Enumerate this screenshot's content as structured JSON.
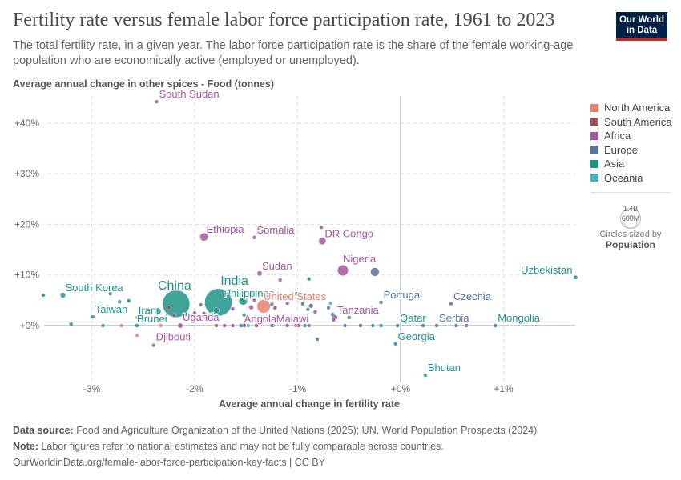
{
  "header": {
    "title": "Fertility rate versus female labor force participation rate, 1961 to 2023",
    "subtitle": "The total fertility rate, in a given year. The labor force participation rate is the share of the female working-age population who are economically active (employed or unemployed).",
    "logo_line1": "Our World",
    "logo_line2": "in Data"
  },
  "legend": {
    "regions": [
      {
        "name": "North America",
        "color": "#E9806C"
      },
      {
        "name": "South America",
        "color": "#A0505A"
      },
      {
        "name": "Africa",
        "color": "#A655A0"
      },
      {
        "name": "Europe",
        "color": "#5872A4"
      },
      {
        "name": "Asia",
        "color": "#1E9488"
      },
      {
        "name": "Oceania",
        "color": "#44B4C4"
      }
    ],
    "size_big": "1.4B",
    "size_small": "600M",
    "size_caption": "Circles sized by",
    "size_variable": "Population"
  },
  "chart_data": {
    "type": "scatter",
    "title": "Fertility rate versus female labor force participation rate, 1961 to 2023",
    "xlabel": "Average annual change in fertility rate",
    "ylabel": "Average annual change in other spices - Food (tonnes)",
    "xlim": [
      -3.5,
      1.72
    ],
    "ylim": [
      -12,
      45
    ],
    "x_ticks": [
      {
        "v": -3,
        "label": "-3%"
      },
      {
        "v": -2,
        "label": "-2%"
      },
      {
        "v": -1,
        "label": "-1%"
      },
      {
        "v": 0,
        "label": "+0%"
      },
      {
        "v": 1,
        "label": "+1%"
      }
    ],
    "y_ticks": [
      {
        "v": 0,
        "label": "+0%"
      },
      {
        "v": 10,
        "label": "+10%"
      },
      {
        "v": 20,
        "label": "+20%"
      },
      {
        "v": 30,
        "label": "+30%"
      },
      {
        "v": 40,
        "label": "+40%"
      }
    ],
    "grid": true,
    "size_variable": "Population",
    "points": [
      {
        "label": "South Sudan",
        "region": "Africa",
        "x": -2.37,
        "y": 44.2,
        "pop": 11
      },
      {
        "label": "Ethiopia",
        "region": "Africa",
        "x": -1.91,
        "y": 17.5,
        "pop": 125
      },
      {
        "label": "Somalia",
        "region": "Africa",
        "x": -1.42,
        "y": 17.4,
        "pop": 18
      },
      {
        "label": "DR Congo",
        "region": "Africa",
        "x": -0.76,
        "y": 16.7,
        "pop": 100
      },
      {
        "region": "Africa",
        "x": -0.77,
        "y": 19.4,
        "pop": 5
      },
      {
        "label": "Sudan",
        "region": "Africa",
        "x": -1.37,
        "y": 10.3,
        "pop": 48
      },
      {
        "label": "Nigeria",
        "region": "Africa",
        "x": -0.56,
        "y": 10.9,
        "pop": 220
      },
      {
        "region": "Europe",
        "x": -0.25,
        "y": 10.6,
        "pop": 140
      },
      {
        "label": "Uzbekistan",
        "region": "Asia",
        "x": 1.7,
        "y": 9.5,
        "pop": 35
      },
      {
        "label": "South Korea",
        "region": "Asia",
        "x": -3.28,
        "y": 6.0,
        "pop": 52
      },
      {
        "label": "China",
        "region": "Asia",
        "x": -2.18,
        "y": 4.3,
        "pop": 1410
      },
      {
        "label": "India",
        "region": "Asia",
        "x": -1.77,
        "y": 4.6,
        "pop": 1430
      },
      {
        "label": "Philippines",
        "region": "Asia",
        "x": -1.53,
        "y": 5.4,
        "pop": 115
      },
      {
        "label": "Iran",
        "region": "Asia",
        "x": -2.36,
        "y": 2.8,
        "pop": 88
      },
      {
        "label": "United States",
        "region": "North America",
        "x": -1.33,
        "y": 3.8,
        "pop": 335
      },
      {
        "label": "Taiwan",
        "region": "Asia",
        "x": -2.99,
        "y": 1.7,
        "pop": 23
      },
      {
        "label": "Brunei",
        "region": "Asia",
        "x": -2.56,
        "y": 0.0,
        "pop": 1
      },
      {
        "label": "Uganda",
        "region": "Africa",
        "x": -2.14,
        "y": 0.0,
        "pop": 48
      },
      {
        "label": "Angola",
        "region": "Africa",
        "x": -1.52,
        "y": 0.0,
        "pop": 36
      },
      {
        "label": "Malawi",
        "region": "Africa",
        "x": -0.99,
        "y": 0.0,
        "pop": 20
      },
      {
        "label": "Tanzania",
        "region": "Africa",
        "x": -0.64,
        "y": 1.6,
        "pop": 65
      },
      {
        "label": "Portugal",
        "region": "Europe",
        "x": -0.19,
        "y": 4.6,
        "pop": 10
      },
      {
        "label": "Czechia",
        "region": "Europe",
        "x": 0.49,
        "y": 4.3,
        "pop": 11
      },
      {
        "label": "Qatar",
        "region": "Asia",
        "x": -0.03,
        "y": 0.0,
        "pop": 3
      },
      {
        "label": "Serbia",
        "region": "Europe",
        "x": 0.35,
        "y": 0.0,
        "pop": 7
      },
      {
        "label": "Mongolia",
        "region": "Asia",
        "x": 0.92,
        "y": 0.0,
        "pop": 3
      },
      {
        "label": "Georgia",
        "region": "Asia",
        "x": -0.05,
        "y": -3.6,
        "pop": 4
      },
      {
        "label": "Bhutan",
        "region": "Asia",
        "x": 0.24,
        "y": -9.8,
        "pop": 1
      },
      {
        "label": "Djibouti",
        "region": "Africa",
        "x": -2.4,
        "y": -3.9,
        "pop": 1
      },
      {
        "region": "Asia",
        "x": -3.47,
        "y": 6.0,
        "pop": 3
      },
      {
        "region": "Asia",
        "x": -3.2,
        "y": 0.3,
        "pop": 3
      },
      {
        "region": "Asia",
        "x": -2.73,
        "y": 4.7,
        "pop": 3
      },
      {
        "region": "Asia",
        "x": -2.64,
        "y": 4.9,
        "pop": 30
      },
      {
        "region": "Asia",
        "x": -2.82,
        "y": 6.3,
        "pop": 3
      },
      {
        "region": "Asia",
        "x": -0.89,
        "y": 9.2,
        "pop": 8
      },
      {
        "region": "Asia",
        "x": -1.01,
        "y": 6.3,
        "pop": 30
      },
      {
        "region": "Asia",
        "x": -1.53,
        "y": 4.9,
        "pop": 140
      },
      {
        "region": "Asia",
        "x": -2.08,
        "y": 2.2,
        "pop": 30
      },
      {
        "region": "Asia",
        "x": -1.79,
        "y": 3.0,
        "pop": 60
      },
      {
        "region": "Asia",
        "x": -1.52,
        "y": 2.1,
        "pop": 20
      },
      {
        "region": "Asia",
        "x": -1.35,
        "y": 1.6,
        "pop": 10
      },
      {
        "region": "Asia",
        "x": -0.66,
        "y": 2.2,
        "pop": 10
      },
      {
        "region": "Asia",
        "x": -2.89,
        "y": 0.0,
        "pop": 3
      },
      {
        "region": "Asia",
        "x": -1.55,
        "y": 0.0,
        "pop": 5
      },
      {
        "region": "Asia",
        "x": -0.93,
        "y": 0.0,
        "pop": 5
      },
      {
        "region": "Asia",
        "x": -0.27,
        "y": 0.0,
        "pop": 3
      },
      {
        "region": "Asia",
        "x": -0.19,
        "y": 0.0,
        "pop": 3
      },
      {
        "region": "Africa",
        "x": -1.94,
        "y": 4.1,
        "pop": 5
      },
      {
        "region": "Africa",
        "x": -1.63,
        "y": 3.3,
        "pop": 25
      },
      {
        "region": "Africa",
        "x": -1.45,
        "y": 3.6,
        "pop": 40
      },
      {
        "region": "Africa",
        "x": -1.42,
        "y": 5.0,
        "pop": 12
      },
      {
        "region": "Africa",
        "x": -1.17,
        "y": 9.0,
        "pop": 5
      },
      {
        "region": "Africa",
        "x": -1.1,
        "y": 4.4,
        "pop": 3
      },
      {
        "region": "Africa",
        "x": -0.83,
        "y": 2.7,
        "pop": 3
      },
      {
        "region": "Africa",
        "x": -0.65,
        "y": 1.1,
        "pop": 12
      },
      {
        "region": "Africa",
        "x": -1.71,
        "y": 0.0,
        "pop": 3
      },
      {
        "region": "Africa",
        "x": -1.63,
        "y": 0.0,
        "pop": 3
      },
      {
        "region": "Africa",
        "x": -1.24,
        "y": 0.0,
        "pop": 3
      },
      {
        "region": "Africa",
        "x": -0.89,
        "y": 0.0,
        "pop": 3
      },
      {
        "region": "Europe",
        "x": -0.95,
        "y": 4.3,
        "pop": 30
      },
      {
        "region": "Europe",
        "x": -0.87,
        "y": 3.9,
        "pop": 40
      },
      {
        "region": "Europe",
        "x": -0.9,
        "y": 3.2,
        "pop": 8
      },
      {
        "region": "Europe",
        "x": -0.7,
        "y": 3.5,
        "pop": 3
      },
      {
        "region": "Europe",
        "x": -0.81,
        "y": -2.7,
        "pop": 3
      },
      {
        "region": "Europe",
        "x": -0.5,
        "y": 1.6,
        "pop": 3
      },
      {
        "region": "Europe",
        "x": -1.25,
        "y": 4.2,
        "pop": 20
      },
      {
        "region": "Europe",
        "x": 0.22,
        "y": 0.0,
        "pop": 3
      },
      {
        "region": "Europe",
        "x": 0.54,
        "y": 0.0,
        "pop": 3
      },
      {
        "region": "Europe",
        "x": 0.64,
        "y": 0.0,
        "pop": 3
      },
      {
        "region": "Europe",
        "x": -1.25,
        "y": 0.0,
        "pop": 3
      },
      {
        "region": "Europe",
        "x": -0.54,
        "y": 0.0,
        "pop": 3
      },
      {
        "region": "Europe",
        "x": -0.39,
        "y": 0.0,
        "pop": 3
      },
      {
        "region": "South America",
        "x": -2.25,
        "y": 3.5,
        "pop": 5
      },
      {
        "region": "South America",
        "x": -2.0,
        "y": 2.5,
        "pop": 8
      },
      {
        "region": "South America",
        "x": -1.91,
        "y": 2.4,
        "pop": 5
      },
      {
        "region": "South America",
        "x": -1.22,
        "y": 3.5,
        "pop": 20
      },
      {
        "region": "South America",
        "x": -1.2,
        "y": 1.9,
        "pop": 5
      },
      {
        "region": "South America",
        "x": -2.2,
        "y": 2.0,
        "pop": 3
      },
      {
        "region": "South America",
        "x": -1.79,
        "y": 0.0,
        "pop": 3
      },
      {
        "region": "South America",
        "x": -1.4,
        "y": 0.0,
        "pop": 3
      },
      {
        "region": "South America",
        "x": -1.1,
        "y": 0.0,
        "pop": 3
      },
      {
        "region": "North America",
        "x": -2.56,
        "y": 1.6,
        "pop": 3
      },
      {
        "region": "North America",
        "x": -2.56,
        "y": -1.9,
        "pop": 3
      },
      {
        "region": "North America",
        "x": -2.71,
        "y": 0.0,
        "pop": 3
      },
      {
        "region": "North America",
        "x": -2.33,
        "y": 0.0,
        "pop": 3
      },
      {
        "region": "North America",
        "x": -1.02,
        "y": 0.0,
        "pop": 3
      },
      {
        "region": "Oceania",
        "x": -1.2,
        "y": 5.4,
        "pop": 3
      },
      {
        "region": "Oceania",
        "x": -0.68,
        "y": 4.4,
        "pop": 3
      },
      {
        "region": "Oceania",
        "x": -1.48,
        "y": 0.0,
        "pop": 3
      }
    ]
  },
  "footer": {
    "source_label": "Data source:",
    "source_text": "Food and Agriculture Organization of the United Nations (2025); UN, World Population Prospects (2024)",
    "note_label": "Note:",
    "note_text": "Labor figures refer to national estimates and may not be fully comparable across countries.",
    "url": "OurWorldinData.org/female-labor-force-participation-key-facts | CC BY"
  }
}
